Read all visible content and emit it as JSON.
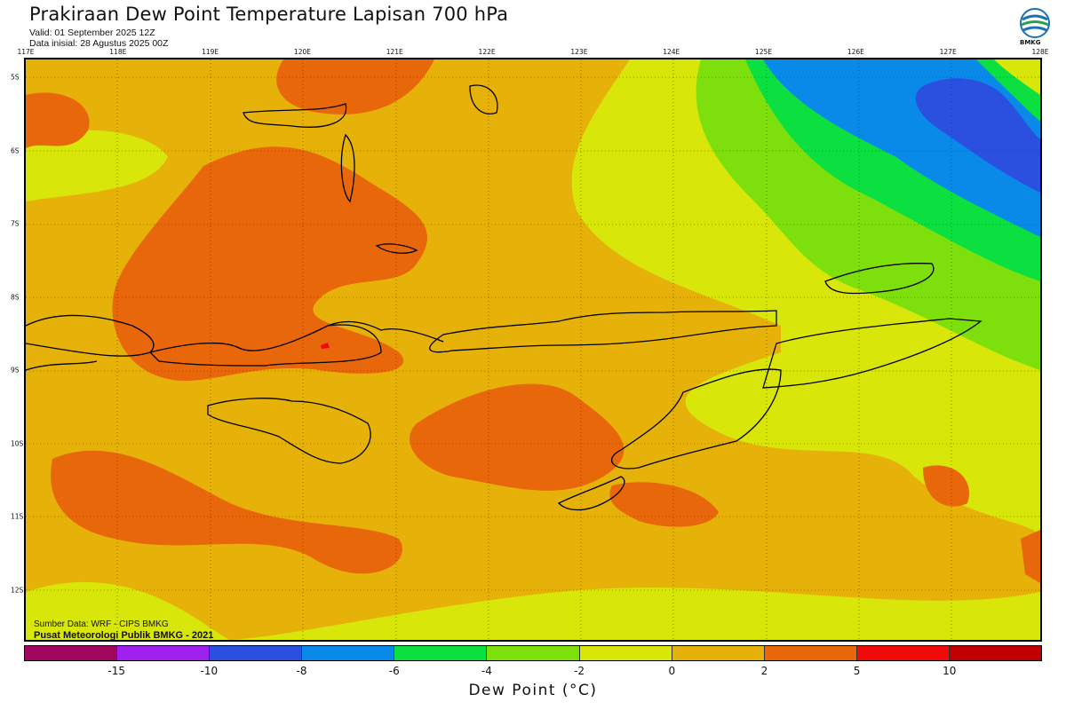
{
  "header": {
    "title": "Prakiraan Dew Point Temperature Lapisan 700 hPa",
    "valid": "Valid: 01 September 2025 12Z",
    "init": "Data inisial: 28 Agustus 2025 00Z"
  },
  "logo": {
    "text": "BMKG",
    "icon": "bmkg-logo"
  },
  "axes": {
    "lon_labels": [
      "117E",
      "118E",
      "119E",
      "120E",
      "121E",
      "122E",
      "123E",
      "124E",
      "125E",
      "126E",
      "127E",
      "128E"
    ],
    "lat_labels": [
      "5S",
      "6S",
      "7S",
      "8S",
      "9S",
      "10S",
      "11S",
      "12S"
    ]
  },
  "credits": {
    "source": "Sumber Data: WRF - CIPS BMKG",
    "org": "Pusat Meteorologi Publik BMKG - 2021"
  },
  "colorbar": {
    "colors": [
      "#a0085f",
      "#a020f0",
      "#2b50e0",
      "#0a8ae8",
      "#0ce040",
      "#7de00c",
      "#d9e60a",
      "#e6b20a",
      "#e8670a",
      "#f00a0a",
      "#c00000"
    ],
    "ticks": [
      "-15",
      "-10",
      "-8",
      "-6",
      "-4",
      "-2",
      "0",
      "2",
      "5",
      "10"
    ],
    "label": "Dew Point (°C)"
  },
  "map_colors": {
    "orange_light": "#e6b20a",
    "orange_dark": "#e8670a",
    "yellow": "#d9e60a",
    "green_light": "#7de00c",
    "green": "#0ce040",
    "blue_light": "#0a8ae8",
    "blue_dark": "#2b50e0",
    "red": "#f00a0a"
  }
}
